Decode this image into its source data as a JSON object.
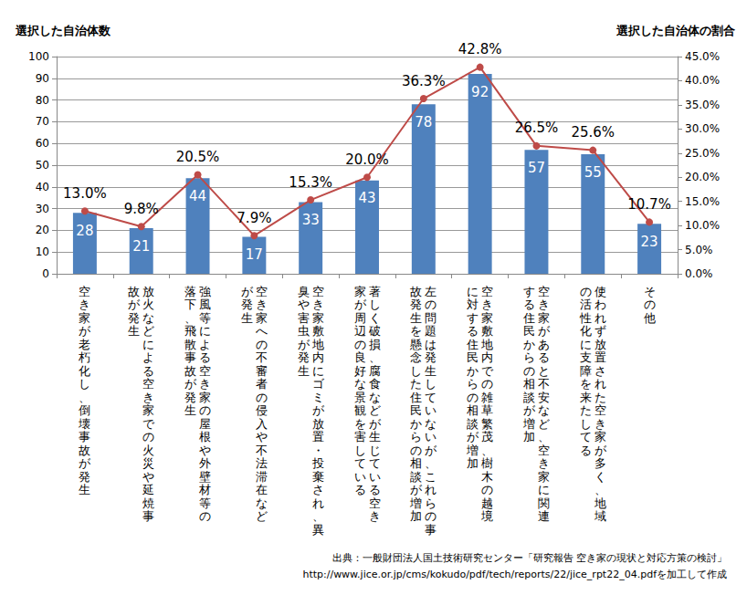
{
  "chart_data": {
    "type": "bar",
    "y_label": "選択した自治体数",
    "y2_label": "選択した自治体の割合",
    "categories": [
      "空き家が老朽化し、倒壊事故が発生",
      "放火などによる空き家での火災や延焼事\n故が発生",
      "強風等による空き家の屋根や外壁材等の\n落下、飛散事故が発生",
      "空き家への不審者の侵入や不法滞在など\nが発生",
      "空き家敷地内にゴミが放置・投棄され、異\n臭や害虫が発生",
      "著しく破損、腐食などが生じている空き\n家が周辺の良好な景観を害している",
      "左の問題は発生していないが、これらの事\n故発生を懸念した住民からの相談が増加",
      "空き家敷地内での雑草繁茂、樹木の越境\nに対する住民からの相談が増加",
      "空き家があると不安など、空き家に関連\nする住民からの相談が増加",
      "使われず放置された空き家が多く、地域\nの活性化に支障を来たしてる",
      "その他"
    ],
    "series": [
      {
        "type": "bar",
        "color": "#4f81bd",
        "data_labels": true,
        "values": [
          28,
          21,
          44,
          17,
          33,
          43,
          78,
          92,
          57,
          55,
          23
        ]
      },
      {
        "type": "line",
        "axis": "y2",
        "color": "#be4b48",
        "marker": "circle",
        "data_labels": true,
        "values": [
          13.0,
          9.8,
          20.5,
          7.9,
          15.3,
          20.0,
          36.3,
          42.8,
          26.5,
          25.6,
          10.7
        ],
        "value_labels": [
          "13.0%",
          "9.8%",
          "20.5%",
          "7.9%",
          "15.3%",
          "20.0%",
          "36.3%",
          "42.8%",
          "26.5%",
          "25.6%",
          "10.7%"
        ]
      }
    ],
    "ylim": [
      0,
      100
    ],
    "yticks": [
      0,
      10,
      20,
      30,
      40,
      50,
      60,
      70,
      80,
      90,
      100
    ],
    "y2lim": [
      0,
      45
    ],
    "y2ticks": [
      {
        "value": 0,
        "label": "0.0%"
      },
      {
        "value": 5,
        "label": "5.0%"
      },
      {
        "value": 10,
        "label": "10.0%"
      },
      {
        "value": 15,
        "label": "15.0%"
      },
      {
        "value": 20,
        "label": "20.0%"
      },
      {
        "value": 25,
        "label": "25.0%"
      },
      {
        "value": 30,
        "label": "30.0%"
      },
      {
        "value": 35,
        "label": "35.0%"
      },
      {
        "value": 40,
        "label": "40.0%"
      },
      {
        "value": 45,
        "label": "45.0%"
      }
    ],
    "grid": true,
    "annotations": [
      "出典：一般財団法人国土技術研究センター「研究報告 空き家の現状と対応方策の検討」",
      "http://www.jice.or.jp/cms/kokudo/pdf/tech/reports/22/jice_rpt22_04.pdfを加工して作成"
    ]
  }
}
